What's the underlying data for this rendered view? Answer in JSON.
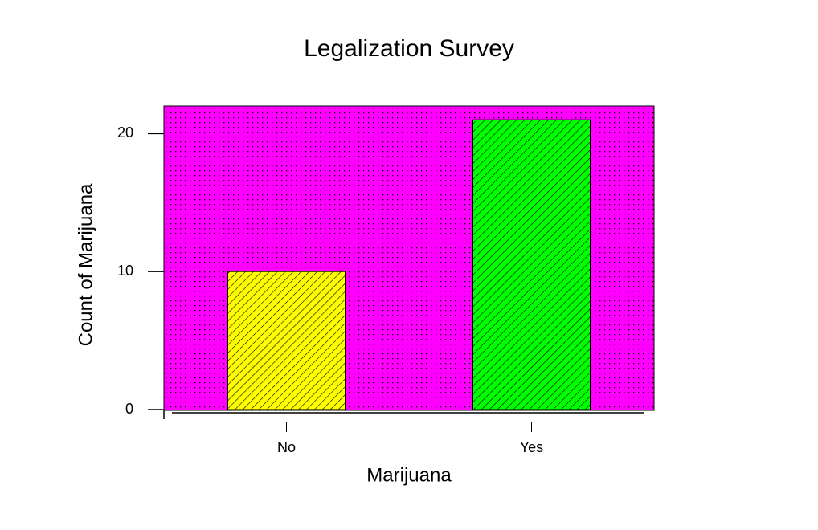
{
  "chart_data": {
    "type": "bar",
    "title": "Legalization Survey",
    "x_label": "Marijuana",
    "y_label": "Count of Marijuana",
    "categories": [
      "No",
      "Yes"
    ],
    "values": [
      10,
      21
    ],
    "colors": [
      "#ffff00",
      "#00ff00"
    ],
    "background": "#ff00ff",
    "ylim": [
      0,
      22
    ],
    "yticks": [
      0,
      10,
      20
    ]
  }
}
